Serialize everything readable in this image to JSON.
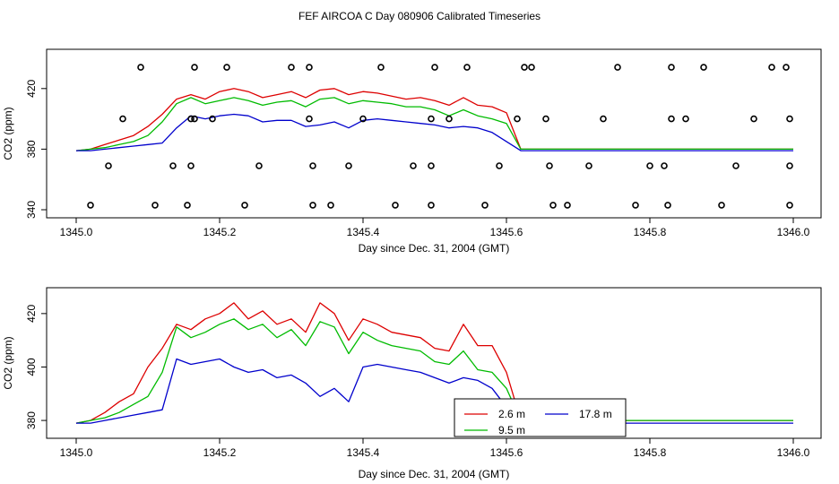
{
  "title": "FEF AIRCOA C  Day 080906  Calibrated Timeseries",
  "colors": {
    "h26": "#dd0000",
    "h95": "#00bb00",
    "h178": "#0000cc",
    "axis": "#000000"
  },
  "chart_data": [
    {
      "type": "line",
      "panel": "top",
      "xlabel": "Day since Dec. 31, 2004 (GMT)",
      "ylabel": "CO2 (ppm)",
      "xlim": [
        1345.0,
        1346.0
      ],
      "ylim": [
        340,
        440
      ],
      "xticks": [
        1345.0,
        1345.2,
        1345.4,
        1345.6,
        1345.8,
        1346.0
      ],
      "xtick_labels": [
        "1345.0",
        "1345.2",
        "1345.4",
        "1345.6",
        "1345.8",
        "1346.0"
      ],
      "yticks": [
        340,
        380,
        420
      ],
      "ytick_labels": [
        "340",
        "380",
        "420"
      ],
      "series": [
        {
          "name": "2.6 m",
          "color": "#dd0000",
          "x": [
            1345.0,
            1345.02,
            1345.04,
            1345.06,
            1345.08,
            1345.1,
            1345.12,
            1345.14,
            1345.16,
            1345.18,
            1345.2,
            1345.22,
            1345.24,
            1345.26,
            1345.28,
            1345.3,
            1345.32,
            1345.34,
            1345.36,
            1345.38,
            1345.4,
            1345.42,
            1345.44,
            1345.46,
            1345.48,
            1345.5,
            1345.52,
            1345.54,
            1345.56,
            1345.58,
            1345.6,
            1345.62,
            1345.64,
            1345.7,
            1345.8,
            1345.9,
            1346.0
          ],
          "y": [
            379,
            380,
            383,
            386,
            389,
            395,
            403,
            413,
            416,
            413,
            418,
            420,
            418,
            414,
            416,
            418,
            414,
            419,
            420,
            416,
            418,
            417,
            415,
            413,
            414,
            412,
            409,
            414,
            409,
            408,
            404,
            380,
            380,
            380,
            380,
            380,
            380
          ]
        },
        {
          "name": "9.5 m",
          "color": "#00bb00",
          "x": [
            1345.0,
            1345.02,
            1345.04,
            1345.06,
            1345.08,
            1345.1,
            1345.12,
            1345.14,
            1345.16,
            1345.18,
            1345.2,
            1345.22,
            1345.24,
            1345.26,
            1345.28,
            1345.3,
            1345.32,
            1345.34,
            1345.36,
            1345.38,
            1345.4,
            1345.42,
            1345.44,
            1345.46,
            1345.48,
            1345.5,
            1345.52,
            1345.54,
            1345.56,
            1345.58,
            1345.6,
            1345.62,
            1345.64,
            1345.7,
            1345.8,
            1345.9,
            1346.0
          ],
          "y": [
            379,
            380,
            381,
            383,
            385,
            389,
            398,
            410,
            414,
            410,
            412,
            414,
            412,
            409,
            411,
            412,
            408,
            413,
            414,
            410,
            412,
            411,
            410,
            408,
            408,
            406,
            402,
            406,
            402,
            400,
            397,
            380,
            380,
            380,
            380,
            380,
            380
          ]
        },
        {
          "name": "17.8 m",
          "color": "#0000cc",
          "x": [
            1345.0,
            1345.02,
            1345.04,
            1345.06,
            1345.08,
            1345.1,
            1345.12,
            1345.14,
            1345.16,
            1345.18,
            1345.2,
            1345.22,
            1345.24,
            1345.26,
            1345.28,
            1345.3,
            1345.32,
            1345.34,
            1345.36,
            1345.38,
            1345.4,
            1345.42,
            1345.44,
            1345.46,
            1345.48,
            1345.5,
            1345.52,
            1345.54,
            1345.56,
            1345.58,
            1345.6,
            1345.62,
            1345.64,
            1345.7,
            1345.8,
            1345.9,
            1346.0
          ],
          "y": [
            379,
            379,
            380,
            381,
            382,
            383,
            384,
            394,
            402,
            400,
            402,
            403,
            402,
            398,
            399,
            399,
            395,
            396,
            398,
            394,
            399,
            400,
            399,
            398,
            397,
            396,
            394,
            395,
            394,
            391,
            385,
            379,
            379,
            379,
            379,
            379,
            379
          ]
        }
      ],
      "markers": {
        "name": "calibration points",
        "x": [
          1345.02,
          1345.045,
          1345.065,
          1345.09,
          1345.11,
          1345.135,
          1345.155,
          1345.16,
          1345.16,
          1345.165,
          1345.165,
          1345.19,
          1345.21,
          1345.235,
          1345.255,
          1345.3,
          1345.325,
          1345.325,
          1345.33,
          1345.33,
          1345.355,
          1345.38,
          1345.4,
          1345.425,
          1345.445,
          1345.47,
          1345.495,
          1345.495,
          1345.495,
          1345.5,
          1345.52,
          1345.545,
          1345.57,
          1345.59,
          1345.615,
          1345.625,
          1345.635,
          1345.655,
          1345.66,
          1345.665,
          1345.685,
          1345.715,
          1345.735,
          1345.755,
          1345.78,
          1345.8,
          1345.82,
          1345.825,
          1345.83,
          1345.83,
          1345.85,
          1345.875,
          1345.9,
          1345.92,
          1345.945,
          1345.97,
          1345.99,
          1345.995,
          1345.995,
          1345.995
        ],
        "y": [
          343,
          369,
          400,
          434,
          343,
          369,
          343,
          369,
          400,
          434,
          400,
          400,
          434,
          343,
          369,
          434,
          434,
          400,
          369,
          343,
          343,
          369,
          400,
          434,
          343,
          369,
          400,
          343,
          369,
          434,
          400,
          434,
          343,
          369,
          400,
          434,
          434,
          400,
          369,
          343,
          343,
          369,
          400,
          434,
          343,
          369,
          369,
          343,
          400,
          434,
          400,
          434,
          343,
          369,
          400,
          434,
          434,
          400,
          369,
          343
        ]
      }
    },
    {
      "type": "line",
      "panel": "bottom",
      "xlabel": "Day since Dec. 31, 2004 (GMT)",
      "ylabel": "CO2 (ppm)",
      "xlim": [
        1345.0,
        1346.0
      ],
      "ylim": [
        375,
        428
      ],
      "xticks": [
        1345.0,
        1345.2,
        1345.4,
        1345.6,
        1345.8,
        1346.0
      ],
      "xtick_labels": [
        "1345.0",
        "1345.2",
        "1345.4",
        "1345.6",
        "1345.8",
        "1346.0"
      ],
      "yticks": [
        380,
        400,
        420
      ],
      "ytick_labels": [
        "380",
        "400",
        "420"
      ],
      "legend": {
        "position": "bottom-center",
        "entries": [
          {
            "label": "2.6 m",
            "color": "#dd0000"
          },
          {
            "label": "9.5 m",
            "color": "#00bb00"
          },
          {
            "label": "17.8 m",
            "color": "#0000cc"
          }
        ]
      },
      "series": [
        {
          "name": "2.6 m",
          "color": "#dd0000",
          "x": [
            1345.0,
            1345.02,
            1345.04,
            1345.06,
            1345.08,
            1345.1,
            1345.12,
            1345.14,
            1345.16,
            1345.18,
            1345.2,
            1345.22,
            1345.24,
            1345.26,
            1345.28,
            1345.3,
            1345.32,
            1345.34,
            1345.36,
            1345.38,
            1345.4,
            1345.42,
            1345.44,
            1345.46,
            1345.48,
            1345.5,
            1345.52,
            1345.54,
            1345.56,
            1345.58,
            1345.6,
            1345.62,
            1345.64,
            1345.7,
            1345.8,
            1345.9,
            1346.0
          ],
          "y": [
            379,
            380,
            383,
            387,
            390,
            400,
            407,
            416,
            414,
            418,
            420,
            424,
            418,
            421,
            416,
            418,
            413,
            424,
            420,
            410,
            418,
            416,
            413,
            412,
            411,
            407,
            406,
            416,
            408,
            408,
            398,
            380,
            380,
            380,
            380,
            380,
            380
          ]
        },
        {
          "name": "9.5 m",
          "color": "#00bb00",
          "x": [
            1345.0,
            1345.02,
            1345.04,
            1345.06,
            1345.08,
            1345.1,
            1345.12,
            1345.14,
            1345.16,
            1345.18,
            1345.2,
            1345.22,
            1345.24,
            1345.26,
            1345.28,
            1345.3,
            1345.32,
            1345.34,
            1345.36,
            1345.38,
            1345.4,
            1345.42,
            1345.44,
            1345.46,
            1345.48,
            1345.5,
            1345.52,
            1345.54,
            1345.56,
            1345.58,
            1345.6,
            1345.62,
            1345.64,
            1345.7,
            1345.8,
            1345.9,
            1346.0
          ],
          "y": [
            379,
            380,
            381,
            383,
            386,
            389,
            398,
            415,
            411,
            413,
            416,
            418,
            414,
            416,
            411,
            414,
            408,
            417,
            415,
            405,
            413,
            410,
            408,
            407,
            406,
            402,
            401,
            406,
            399,
            398,
            392,
            380,
            380,
            380,
            380,
            380,
            380
          ]
        },
        {
          "name": "17.8 m",
          "color": "#0000cc",
          "x": [
            1345.0,
            1345.02,
            1345.04,
            1345.06,
            1345.08,
            1345.1,
            1345.12,
            1345.14,
            1345.16,
            1345.18,
            1345.2,
            1345.22,
            1345.24,
            1345.26,
            1345.28,
            1345.3,
            1345.32,
            1345.34,
            1345.36,
            1345.38,
            1345.4,
            1345.42,
            1345.44,
            1345.46,
            1345.48,
            1345.5,
            1345.52,
            1345.54,
            1345.56,
            1345.58,
            1345.6,
            1345.62,
            1345.64,
            1345.7,
            1345.8,
            1345.9,
            1346.0
          ],
          "y": [
            379,
            379,
            380,
            381,
            382,
            383,
            384,
            403,
            401,
            402,
            403,
            400,
            398,
            399,
            396,
            397,
            394,
            389,
            392,
            387,
            400,
            401,
            400,
            399,
            398,
            396,
            394,
            396,
            395,
            392,
            385,
            379,
            379,
            379,
            379,
            379,
            379
          ]
        }
      ]
    }
  ]
}
